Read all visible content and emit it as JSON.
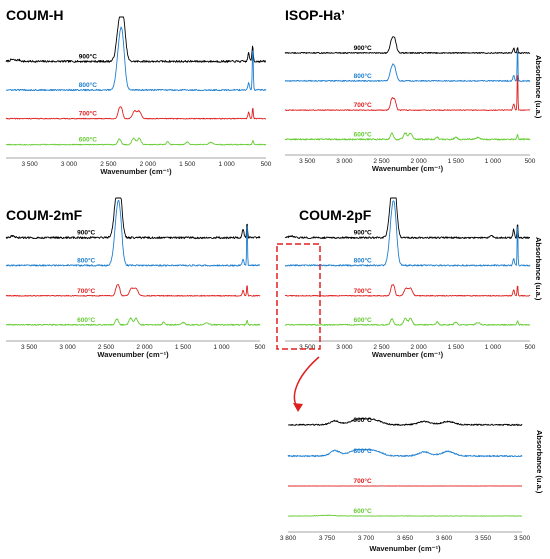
{
  "chart_data": [
    {
      "id": "coum-h",
      "type": "line",
      "title": "COUM-H",
      "xlabel": "Wavenumber (cm⁻¹)",
      "ylabel": "",
      "xlim": [
        3800,
        500
      ],
      "x_reversed": true,
      "xticks": [
        "3 500",
        "3 000",
        "2 500",
        "2 000",
        "1 500",
        "1 000",
        "500"
      ],
      "xtick_values": [
        3500,
        3000,
        2500,
        2000,
        1500,
        1000,
        500
      ],
      "series": [
        {
          "name": "900°C",
          "color": "#000000",
          "baseline": 0.72,
          "noise": 0.35,
          "bands": [
            [
              3720,
              0.25,
              30
            ],
            [
              3640,
              0.2,
              25
            ],
            [
              2360,
              5.2,
              35
            ],
            [
              2310,
              4.6,
              30
            ],
            [
              670,
              2.2,
              8
            ],
            [
              720,
              1.2,
              10
            ]
          ]
        },
        {
          "name": "800°C",
          "color": "#1e7fd0",
          "baseline": 0.5,
          "noise": 0.25,
          "bands": [
            [
              2360,
              5.6,
              35
            ],
            [
              2320,
              5.0,
              30
            ],
            [
              668,
              6.2,
              6
            ],
            [
              720,
              1.0,
              10
            ]
          ]
        },
        {
          "name": "700°C",
          "color": "#e02020",
          "baseline": 0.28,
          "noise": 0.15,
          "bands": [
            [
              2360,
              1.4,
              18
            ],
            [
              2330,
              1.1,
              15
            ],
            [
              2170,
              1.0,
              25
            ],
            [
              2110,
              1.0,
              25
            ],
            [
              668,
              1.6,
              6
            ],
            [
              720,
              0.9,
              10
            ]
          ]
        },
        {
          "name": "600°C",
          "color": "#66cc33",
          "baseline": 0.08,
          "noise": 0.15,
          "bands": [
            [
              2360,
              0.8,
              20
            ],
            [
              2180,
              0.9,
              22
            ],
            [
              2110,
              0.9,
              22
            ],
            [
              1750,
              0.4,
              15
            ],
            [
              1500,
              0.35,
              20
            ],
            [
              1200,
              0.3,
              25
            ],
            [
              668,
              0.6,
              8
            ]
          ]
        }
      ]
    },
    {
      "id": "isop-ha",
      "type": "line",
      "title": "ISOP-Ha’",
      "xlabel": "Wavenumber (cm⁻¹)",
      "ylabel": "Absorbance (u.a.)",
      "xlim": [
        3800,
        500
      ],
      "x_reversed": true,
      "xticks": [
        "3 500",
        "3 000",
        "2 500",
        "2 000",
        "1 500",
        "1 000",
        "500"
      ],
      "xtick_values": [
        3500,
        3000,
        2500,
        2000,
        1500,
        1000,
        500
      ],
      "series": [
        {
          "name": "900°C",
          "color": "#000000",
          "baseline": 0.78,
          "noise": 0.2,
          "bands": [
            [
              2360,
              1.8,
              25
            ],
            [
              2320,
              1.6,
              22
            ],
            [
              668,
              0.9,
              6
            ],
            [
              720,
              0.7,
              10
            ]
          ]
        },
        {
          "name": "800°C",
          "color": "#1e7fd0",
          "baseline": 0.56,
          "noise": 0.2,
          "bands": [
            [
              2360,
              1.9,
              25
            ],
            [
              2320,
              1.5,
              22
            ],
            [
              668,
              5.0,
              5
            ],
            [
              720,
              0.8,
              10
            ]
          ]
        },
        {
          "name": "700°C",
          "color": "#e02020",
          "baseline": 0.33,
          "noise": 0.15,
          "bands": [
            [
              2360,
              1.6,
              20
            ],
            [
              2320,
              1.3,
              18
            ],
            [
              668,
              6.0,
              5
            ],
            [
              720,
              0.9,
              10
            ]
          ]
        },
        {
          "name": "600°C",
          "color": "#66cc33",
          "baseline": 0.1,
          "noise": 0.25,
          "bands": [
            [
              2360,
              0.9,
              20
            ],
            [
              2180,
              0.9,
              22
            ],
            [
              2110,
              0.9,
              22
            ],
            [
              1750,
              0.35,
              15
            ],
            [
              1500,
              0.3,
              20
            ],
            [
              1200,
              0.3,
              25
            ],
            [
              668,
              0.7,
              8
            ]
          ]
        }
      ]
    },
    {
      "id": "coum-2mf",
      "type": "line",
      "title": "COUM-2mF",
      "xlabel": "Wavenumber (cm⁻¹)",
      "ylabel": "",
      "xlim": [
        3800,
        500
      ],
      "x_reversed": true,
      "xticks": [
        "3 500",
        "3 000",
        "2 500",
        "2 000",
        "1 500",
        "1 000",
        "500"
      ],
      "xtick_values": [
        3500,
        3000,
        2500,
        2000,
        1500,
        1000,
        500
      ],
      "series": [
        {
          "name": "900°C",
          "color": "#000000",
          "baseline": 0.76,
          "noise": 0.35,
          "bands": [
            [
              3720,
              0.2,
              30
            ],
            [
              2360,
              5.4,
              35
            ],
            [
              2320,
              4.7,
              30
            ],
            [
              668,
              2.0,
              6
            ],
            [
              720,
              1.2,
              10
            ]
          ]
        },
        {
          "name": "800°C",
          "color": "#1e7fd0",
          "baseline": 0.55,
          "noise": 0.25,
          "bands": [
            [
              2360,
              5.8,
              35
            ],
            [
              2320,
              5.0,
              30
            ],
            [
              668,
              6.4,
              5
            ],
            [
              720,
              0.9,
              10
            ]
          ]
        },
        {
          "name": "700°C",
          "color": "#e02020",
          "baseline": 0.32,
          "noise": 0.15,
          "bands": [
            [
              2360,
              1.3,
              18
            ],
            [
              2330,
              1.0,
              15
            ],
            [
              2170,
              1.0,
              25
            ],
            [
              2110,
              1.0,
              25
            ],
            [
              668,
              1.5,
              6
            ],
            [
              720,
              0.8,
              10
            ]
          ]
        },
        {
          "name": "600°C",
          "color": "#66cc33",
          "baseline": 0.1,
          "noise": 0.2,
          "bands": [
            [
              2360,
              0.8,
              20
            ],
            [
              2180,
              0.9,
              22
            ],
            [
              2110,
              0.9,
              22
            ],
            [
              1750,
              0.4,
              15
            ],
            [
              1500,
              0.35,
              20
            ],
            [
              1200,
              0.3,
              25
            ],
            [
              668,
              0.6,
              8
            ]
          ]
        }
      ]
    },
    {
      "id": "coum-2pf",
      "type": "line",
      "title": "COUM-2pF",
      "xlabel": "Wavenumber (cm⁻¹)",
      "ylabel": "Absorbance (u.a.)",
      "xlim": [
        3800,
        500
      ],
      "x_reversed": true,
      "xticks": [
        "3 500",
        "3 000",
        "2 500",
        "2 000",
        "1 500",
        "1 000",
        "500"
      ],
      "xtick_values": [
        3500,
        3000,
        2500,
        2000,
        1500,
        1000,
        500
      ],
      "series": [
        {
          "name": "900°C",
          "color": "#000000",
          "baseline": 0.76,
          "noise": 0.3,
          "bands": [
            [
              3720,
              0.2,
              30
            ],
            [
              2360,
              5.4,
              35
            ],
            [
              2320,
              4.7,
              30
            ],
            [
              1020,
              0.35,
              15
            ],
            [
              668,
              2.0,
              6
            ],
            [
              720,
              1.2,
              10
            ]
          ]
        },
        {
          "name": "800°C",
          "color": "#1e7fd0",
          "baseline": 0.55,
          "noise": 0.25,
          "bands": [
            [
              2360,
              5.8,
              35
            ],
            [
              2320,
              5.0,
              30
            ],
            [
              668,
              6.4,
              5
            ],
            [
              720,
              0.9,
              10
            ]
          ]
        },
        {
          "name": "700°C",
          "color": "#e02020",
          "baseline": 0.32,
          "noise": 0.15,
          "bands": [
            [
              2360,
              1.3,
              18
            ],
            [
              2330,
              1.0,
              15
            ],
            [
              2170,
              1.0,
              25
            ],
            [
              2110,
              1.0,
              25
            ],
            [
              668,
              1.5,
              6
            ],
            [
              720,
              0.8,
              10
            ]
          ]
        },
        {
          "name": "600°C",
          "color": "#66cc33",
          "baseline": 0.1,
          "noise": 0.2,
          "bands": [
            [
              2360,
              0.8,
              20
            ],
            [
              2180,
              0.9,
              22
            ],
            [
              2110,
              0.9,
              22
            ],
            [
              1750,
              0.4,
              15
            ],
            [
              1500,
              0.35,
              20
            ],
            [
              1200,
              0.3,
              25
            ],
            [
              668,
              0.6,
              8
            ]
          ]
        }
      ]
    },
    {
      "id": "zoom",
      "type": "line",
      "title": "",
      "xlabel": "Wavenumber (cm⁻¹)",
      "ylabel": "Absorbance (u.a.)",
      "xlim": [
        3800,
        3500
      ],
      "x_reversed": true,
      "xticks": [
        "3 800",
        "3 750",
        "3 700",
        "3 650",
        "3 600",
        "3 550",
        "3 500"
      ],
      "xtick_values": [
        3800,
        3750,
        3700,
        3650,
        3600,
        3550,
        3500
      ],
      "series": [
        {
          "name": "900°C",
          "color": "#000000",
          "baseline": 0.86,
          "noise": 0.25,
          "bands": [
            [
              3740,
              0.6,
              6
            ],
            [
              3710,
              0.8,
              10
            ],
            [
              3690,
              0.7,
              10
            ],
            [
              3625,
              0.5,
              8
            ],
            [
              3595,
              0.5,
              8
            ]
          ]
        },
        {
          "name": "800°C",
          "color": "#1e7fd0",
          "baseline": 0.6,
          "noise": 0.25,
          "bands": [
            [
              3740,
              0.8,
              6
            ],
            [
              3712,
              0.9,
              10
            ],
            [
              3690,
              0.8,
              10
            ],
            [
              3625,
              0.6,
              8
            ],
            [
              3595,
              0.7,
              8
            ]
          ]
        },
        {
          "name": "700°C",
          "color": "#e02020",
          "baseline": 0.35,
          "noise": 0.05,
          "bands": []
        },
        {
          "name": "600°C",
          "color": "#66cc33",
          "baseline": 0.1,
          "noise": 0.1,
          "bands": [
            [
              3750,
              0.1,
              10
            ]
          ]
        }
      ]
    }
  ]
}
